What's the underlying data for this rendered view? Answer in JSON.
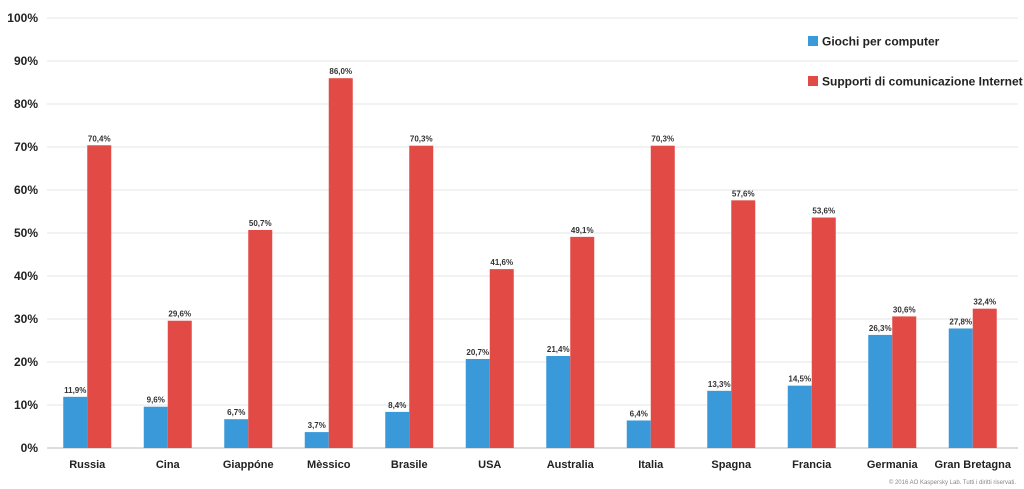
{
  "chart_data": {
    "type": "bar",
    "title": "",
    "xlabel": "",
    "ylabel": "",
    "ylim": [
      0,
      100
    ],
    "yticks": [
      "0%",
      "10%",
      "20%",
      "30%",
      "40%",
      "50%",
      "60%",
      "70%",
      "80%",
      "90%",
      "100%"
    ],
    "grid": true,
    "legend_position": "top-right",
    "categories": [
      "Russia",
      "Cina",
      "Giappóne",
      "Mèssico",
      "Brasile",
      "USA",
      "Australia",
      "Italia",
      "Spagna",
      "Francia",
      "Germania",
      "Gran Bretagna"
    ],
    "series": [
      {
        "name": "Giochi per computer",
        "color": "#3a9ad9",
        "values": [
          11.9,
          9.6,
          6.7,
          3.7,
          8.4,
          20.7,
          21.4,
          6.4,
          13.3,
          14.5,
          26.3,
          27.8
        ],
        "labels": [
          "11,9%",
          "9,6%",
          "6,7%",
          "3,7%",
          "8,4%",
          "20,7%",
          "21,4%",
          "6,4%",
          "13,3%",
          "14,5%",
          "26,3%",
          "27,8%"
        ]
      },
      {
        "name": "Supporti di comunicazione Internet",
        "color": "#e24a45",
        "values": [
          70.4,
          29.6,
          50.7,
          86.0,
          70.3,
          41.6,
          49.1,
          70.3,
          57.6,
          53.6,
          30.6,
          32.4
        ],
        "labels": [
          "70,4%",
          "29,6%",
          "50,7%",
          "86,0%",
          "70,3%",
          "41,6%",
          "49,1%",
          "70,3%",
          "57,6%",
          "53,6%",
          "30,6%",
          "32,4%"
        ]
      }
    ]
  },
  "footer": {
    "copyright": "© 2016 AO Kaspersky Lab. Tutti i diritti riservati."
  }
}
